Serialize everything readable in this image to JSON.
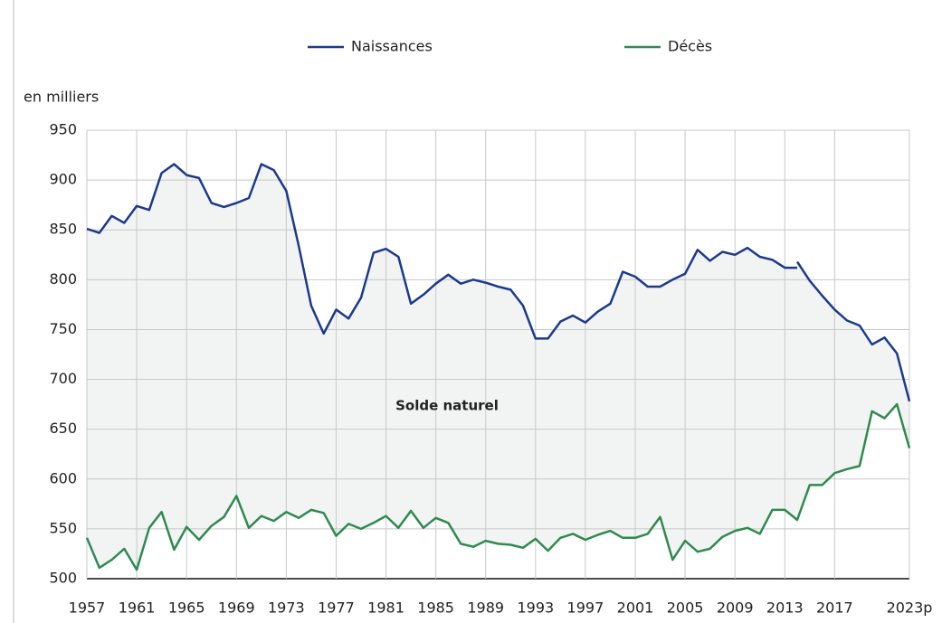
{
  "chart_data": {
    "type": "line",
    "y_axis_label": "en milliers",
    "annotation": "Solde naturel",
    "xlim": [
      1957,
      2023
    ],
    "xticks": [
      1957,
      1961,
      1965,
      1969,
      1973,
      1977,
      1981,
      1985,
      1989,
      1993,
      1997,
      2001,
      2005,
      2009,
      2013,
      2017,
      {
        "value": 2023,
        "label": "2023p"
      }
    ],
    "ylim": [
      500,
      950
    ],
    "yticks": [
      500,
      550,
      600,
      650,
      700,
      750,
      800,
      850,
      900,
      950
    ],
    "grid": true,
    "fill_between": true,
    "series": [
      {
        "name": "Naissances",
        "color": "#1b3a8c",
        "x": [
          1957,
          1958,
          1959,
          1960,
          1961,
          1962,
          1963,
          1964,
          1965,
          1966,
          1967,
          1968,
          1969,
          1970,
          1971,
          1972,
          1973,
          1974,
          1975,
          1976,
          1977,
          1978,
          1979,
          1980,
          1981,
          1982,
          1983,
          1984,
          1985,
          1986,
          1987,
          1988,
          1989,
          1990,
          1991,
          1992,
          1993,
          1994,
          1995,
          1996,
          1997,
          1998,
          1999,
          2000,
          2001,
          2002,
          2003,
          2004,
          2005,
          2006,
          2007,
          2008,
          2009,
          2010,
          2011,
          2012,
          2013,
          2014,
          null,
          2014,
          2015,
          2016,
          2017,
          2018,
          2019,
          2020,
          2021,
          2022,
          2023
        ],
        "values": [
          851,
          847,
          864,
          857,
          874,
          870,
          907,
          916,
          905,
          902,
          877,
          873,
          877,
          882,
          916,
          910,
          889,
          834,
          774,
          746,
          770,
          761,
          782,
          827,
          831,
          823,
          776,
          785,
          796,
          805,
          796,
          800,
          797,
          793,
          790,
          774,
          741,
          741,
          758,
          764,
          757,
          768,
          776,
          808,
          803,
          793,
          793,
          800,
          806,
          830,
          819,
          828,
          825,
          832,
          823,
          820,
          812,
          812,
          null,
          818,
          799,
          784,
          770,
          759,
          754,
          735,
          742,
          726,
          678
        ]
      },
      {
        "name": "Décès",
        "color": "#2e8b4f",
        "x": [
          1957,
          1958,
          1959,
          1960,
          1961,
          1962,
          1963,
          1964,
          1965,
          1966,
          1967,
          1968,
          1969,
          1970,
          1971,
          1972,
          1973,
          1974,
          1975,
          1976,
          1977,
          1978,
          1979,
          1980,
          1981,
          1982,
          1983,
          1984,
          1985,
          1986,
          1987,
          1988,
          1989,
          1990,
          1991,
          1992,
          1993,
          1994,
          1995,
          1996,
          1997,
          1998,
          1999,
          2000,
          2001,
          2002,
          2003,
          2004,
          2005,
          2006,
          2007,
          2008,
          2009,
          2010,
          2011,
          2012,
          2013,
          2014,
          2015,
          2016,
          2017,
          2018,
          2019,
          2020,
          2021,
          2022,
          2023
        ],
        "values": [
          541,
          511,
          519,
          530,
          509,
          551,
          567,
          529,
          552,
          539,
          553,
          562,
          583,
          551,
          563,
          558,
          567,
          561,
          569,
          566,
          543,
          555,
          550,
          556,
          563,
          551,
          568,
          551,
          561,
          556,
          535,
          532,
          538,
          535,
          534,
          531,
          540,
          528,
          541,
          545,
          539,
          544,
          548,
          541,
          541,
          545,
          562,
          519,
          538,
          527,
          530,
          542,
          548,
          551,
          545,
          569,
          569,
          559,
          594,
          594,
          606,
          610,
          613,
          668,
          661,
          675,
          631
        ]
      }
    ]
  }
}
